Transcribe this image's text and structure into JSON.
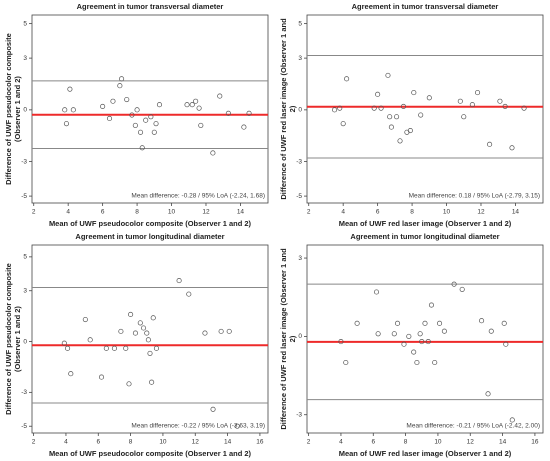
{
  "chart_data": [
    {
      "type": "scatter",
      "title": "Agreement in tumor transversal diameter",
      "x_label": "Mean of UWF pseudocolor composite (Observer 1 and 2)",
      "y_label": "Difference of UWF pseudocolor composite (Observer 1 and 2)",
      "annotation": "Mean difference: -0.28 / 95% LoA (-2.24, 1.68)",
      "mean_difference": -0.28,
      "loa": [
        -2.24,
        1.68
      ],
      "x": [
        3.8,
        3.9,
        4.1,
        4.3,
        6.0,
        6.4,
        6.6,
        7.0,
        7.1,
        7.4,
        7.7,
        7.9,
        8.0,
        8.2,
        8.3,
        8.5,
        8.8,
        9.0,
        9.1,
        9.3,
        10.9,
        11.2,
        11.4,
        11.6,
        11.7,
        12.4,
        12.8,
        13.3,
        14.2,
        14.5
      ],
      "values": [
        0.0,
        -0.8,
        1.2,
        0.0,
        0.2,
        -0.5,
        0.5,
        1.4,
        1.8,
        0.6,
        -0.3,
        -0.9,
        0.0,
        -1.3,
        -2.2,
        -0.6,
        -0.4,
        -1.3,
        -0.8,
        0.3,
        0.3,
        0.3,
        0.5,
        0.1,
        -0.9,
        -2.5,
        0.8,
        -0.2,
        -1.0,
        -0.2
      ],
      "xlim": [
        1.9,
        15.6
      ],
      "xticks": [
        2,
        4,
        6,
        8,
        10,
        12,
        14
      ],
      "ylim": [
        -5.4,
        5.5
      ],
      "yticks": [
        -5,
        -3,
        0,
        3,
        5
      ],
      "marker_color": "#555555",
      "bias_color": "#ee2a2a",
      "loa_color": "#888888"
    },
    {
      "type": "scatter",
      "title": "Agreement in tumor transversal diameter",
      "x_label": "Mean of UWF red laser image (Observer 1 and 2)",
      "y_label": "Difference of UWF red laser image (Observer 1 and 2)",
      "annotation": "Mean difference: 0.18 / 95% LoA (-2.79, 3.15)",
      "mean_difference": 0.18,
      "loa": [
        -2.79,
        3.15
      ],
      "x": [
        3.5,
        3.8,
        4.0,
        4.2,
        5.8,
        6.0,
        6.2,
        6.6,
        6.7,
        6.8,
        7.1,
        7.3,
        7.5,
        7.7,
        7.9,
        8.1,
        8.5,
        9.0,
        10.8,
        11.0,
        11.5,
        11.8,
        12.5,
        13.1,
        13.4,
        13.8,
        14.5
      ],
      "values": [
        0.0,
        0.1,
        -0.8,
        1.8,
        0.1,
        0.9,
        0.1,
        2.0,
        -0.4,
        -1.0,
        -0.4,
        -1.8,
        0.2,
        -1.3,
        -1.2,
        1.0,
        -0.3,
        0.7,
        0.5,
        -0.4,
        0.3,
        1.0,
        -2.0,
        0.5,
        0.2,
        -2.2,
        0.1
      ],
      "xlim": [
        1.9,
        15.6
      ],
      "xticks": [
        2,
        4,
        6,
        8,
        10,
        12,
        14
      ],
      "ylim": [
        -5.4,
        5.5
      ],
      "yticks": [
        -5,
        -3,
        0,
        3,
        5
      ],
      "marker_color": "#555555",
      "bias_color": "#ee2a2a",
      "loa_color": "#888888"
    },
    {
      "type": "scatter",
      "title": "Agreement in tumor longitudinal diameter",
      "x_label": "Mean of UWF pseudocolor composite (Observer 1 and 2)",
      "y_label": "Difference of UWF pseudocolor composite (Observer 1 and 2)",
      "annotation": "Mean difference: -0.22 / 95% LoA (-3.63, 3.19)",
      "mean_difference": -0.22,
      "loa": [
        -3.63,
        3.19
      ],
      "x": [
        3.9,
        4.1,
        4.3,
        5.2,
        5.5,
        6.2,
        6.5,
        7.0,
        7.4,
        7.7,
        7.9,
        8.0,
        8.3,
        8.6,
        8.8,
        9.0,
        9.1,
        9.2,
        9.3,
        9.4,
        9.6,
        11.0,
        11.6,
        12.6,
        13.1,
        13.6,
        14.1,
        14.6
      ],
      "values": [
        -0.1,
        -0.4,
        -1.9,
        1.3,
        0.1,
        -2.1,
        -0.4,
        -0.4,
        0.6,
        -0.4,
        -2.5,
        1.6,
        0.5,
        1.1,
        0.8,
        0.5,
        0.1,
        -0.7,
        -2.4,
        1.4,
        -0.4,
        3.6,
        2.8,
        0.5,
        -4.0,
        0.6,
        0.6,
        -5.0
      ],
      "xlim": [
        1.9,
        16.5
      ],
      "xticks": [
        2,
        4,
        6,
        8,
        10,
        12,
        14,
        16
      ],
      "ylim": [
        -5.4,
        5.7
      ],
      "yticks": [
        -5,
        -3,
        0,
        3,
        5
      ],
      "marker_color": "#555555",
      "bias_color": "#ee2a2a",
      "loa_color": "#888888"
    },
    {
      "type": "scatter",
      "title": "Agreement in tumor longitudinal diameter",
      "x_label": "Mean of UWF red laser image (Observer 1 and 2)",
      "y_label": "Difference of UWF red laser image (Observer 1 and 2)",
      "annotation": "Mean difference: -0.21 / 95% LoA (-2.42, 2.00)",
      "mean_difference": -0.21,
      "loa": [
        -2.42,
        2.0
      ],
      "x": [
        4.0,
        4.3,
        5.0,
        6.2,
        6.3,
        7.3,
        7.5,
        7.9,
        8.2,
        8.5,
        8.7,
        8.9,
        9.0,
        9.2,
        9.4,
        9.6,
        9.8,
        10.1,
        10.4,
        11.0,
        11.5,
        12.7,
        13.1,
        13.3,
        14.1,
        14.2,
        14.6
      ],
      "values": [
        -0.2,
        -1.0,
        0.5,
        1.7,
        0.1,
        0.1,
        0.5,
        -0.3,
        0.0,
        -0.6,
        -1.0,
        0.1,
        -0.2,
        0.5,
        -0.2,
        1.2,
        -1.0,
        0.5,
        0.2,
        2.0,
        1.8,
        0.6,
        -2.2,
        0.2,
        0.5,
        -0.3,
        -3.2
      ],
      "xlim": [
        1.9,
        16.5
      ],
      "xticks": [
        2,
        4,
        6,
        8,
        10,
        12,
        14,
        16
      ],
      "ylim": [
        -3.7,
        3.5
      ],
      "yticks": [
        -3,
        0,
        3
      ],
      "marker_color": "#555555",
      "bias_color": "#ee2a2a",
      "loa_color": "#888888"
    }
  ]
}
